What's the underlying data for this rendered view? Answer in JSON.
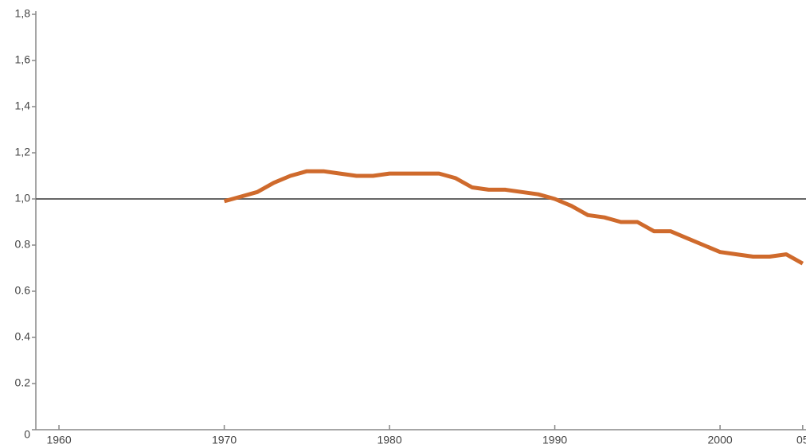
{
  "chart_data": {
    "type": "line",
    "x": [
      1970,
      1971,
      1972,
      1973,
      1974,
      1975,
      1976,
      1977,
      1978,
      1979,
      1980,
      1981,
      1982,
      1983,
      1984,
      1985,
      1986,
      1987,
      1988,
      1989,
      1990,
      1991,
      1992,
      1993,
      1994,
      1995,
      1996,
      1997,
      1998,
      1999,
      2000,
      2001,
      2002,
      2003,
      2004,
      2005
    ],
    "series": [
      {
        "color": "#cf6a2c",
        "values": [
          0.99,
          1.01,
          1.03,
          1.07,
          1.1,
          1.12,
          1.12,
          1.11,
          1.1,
          1.1,
          1.11,
          1.11,
          1.11,
          1.11,
          1.09,
          1.05,
          1.04,
          1.04,
          1.03,
          1.02,
          1.0,
          0.97,
          0.93,
          0.92,
          0.9,
          0.9,
          0.86,
          0.86,
          0.83,
          0.8,
          0.77,
          0.76,
          0.75,
          0.75,
          0.76,
          0.72
        ]
      }
    ],
    "reference_line": 1,
    "xlim": [
      1958.6,
      2005.2
    ],
    "ylim": [
      0,
      1.8
    ],
    "xticks": [
      1960,
      1970,
      1980,
      1990,
      2000,
      {
        "value": 2005,
        "label": "05"
      }
    ],
    "yticks": [
      0,
      0.2,
      0.4,
      0.6,
      0.8,
      {
        "value": 1,
        "label": "1,0"
      },
      {
        "value": 1.2,
        "label": "1,2"
      },
      {
        "value": 1.4,
        "label": "1,4"
      },
      {
        "value": 1.6,
        "label": "1,6"
      },
      {
        "value": 1.8,
        "label": "1,8"
      }
    ]
  }
}
